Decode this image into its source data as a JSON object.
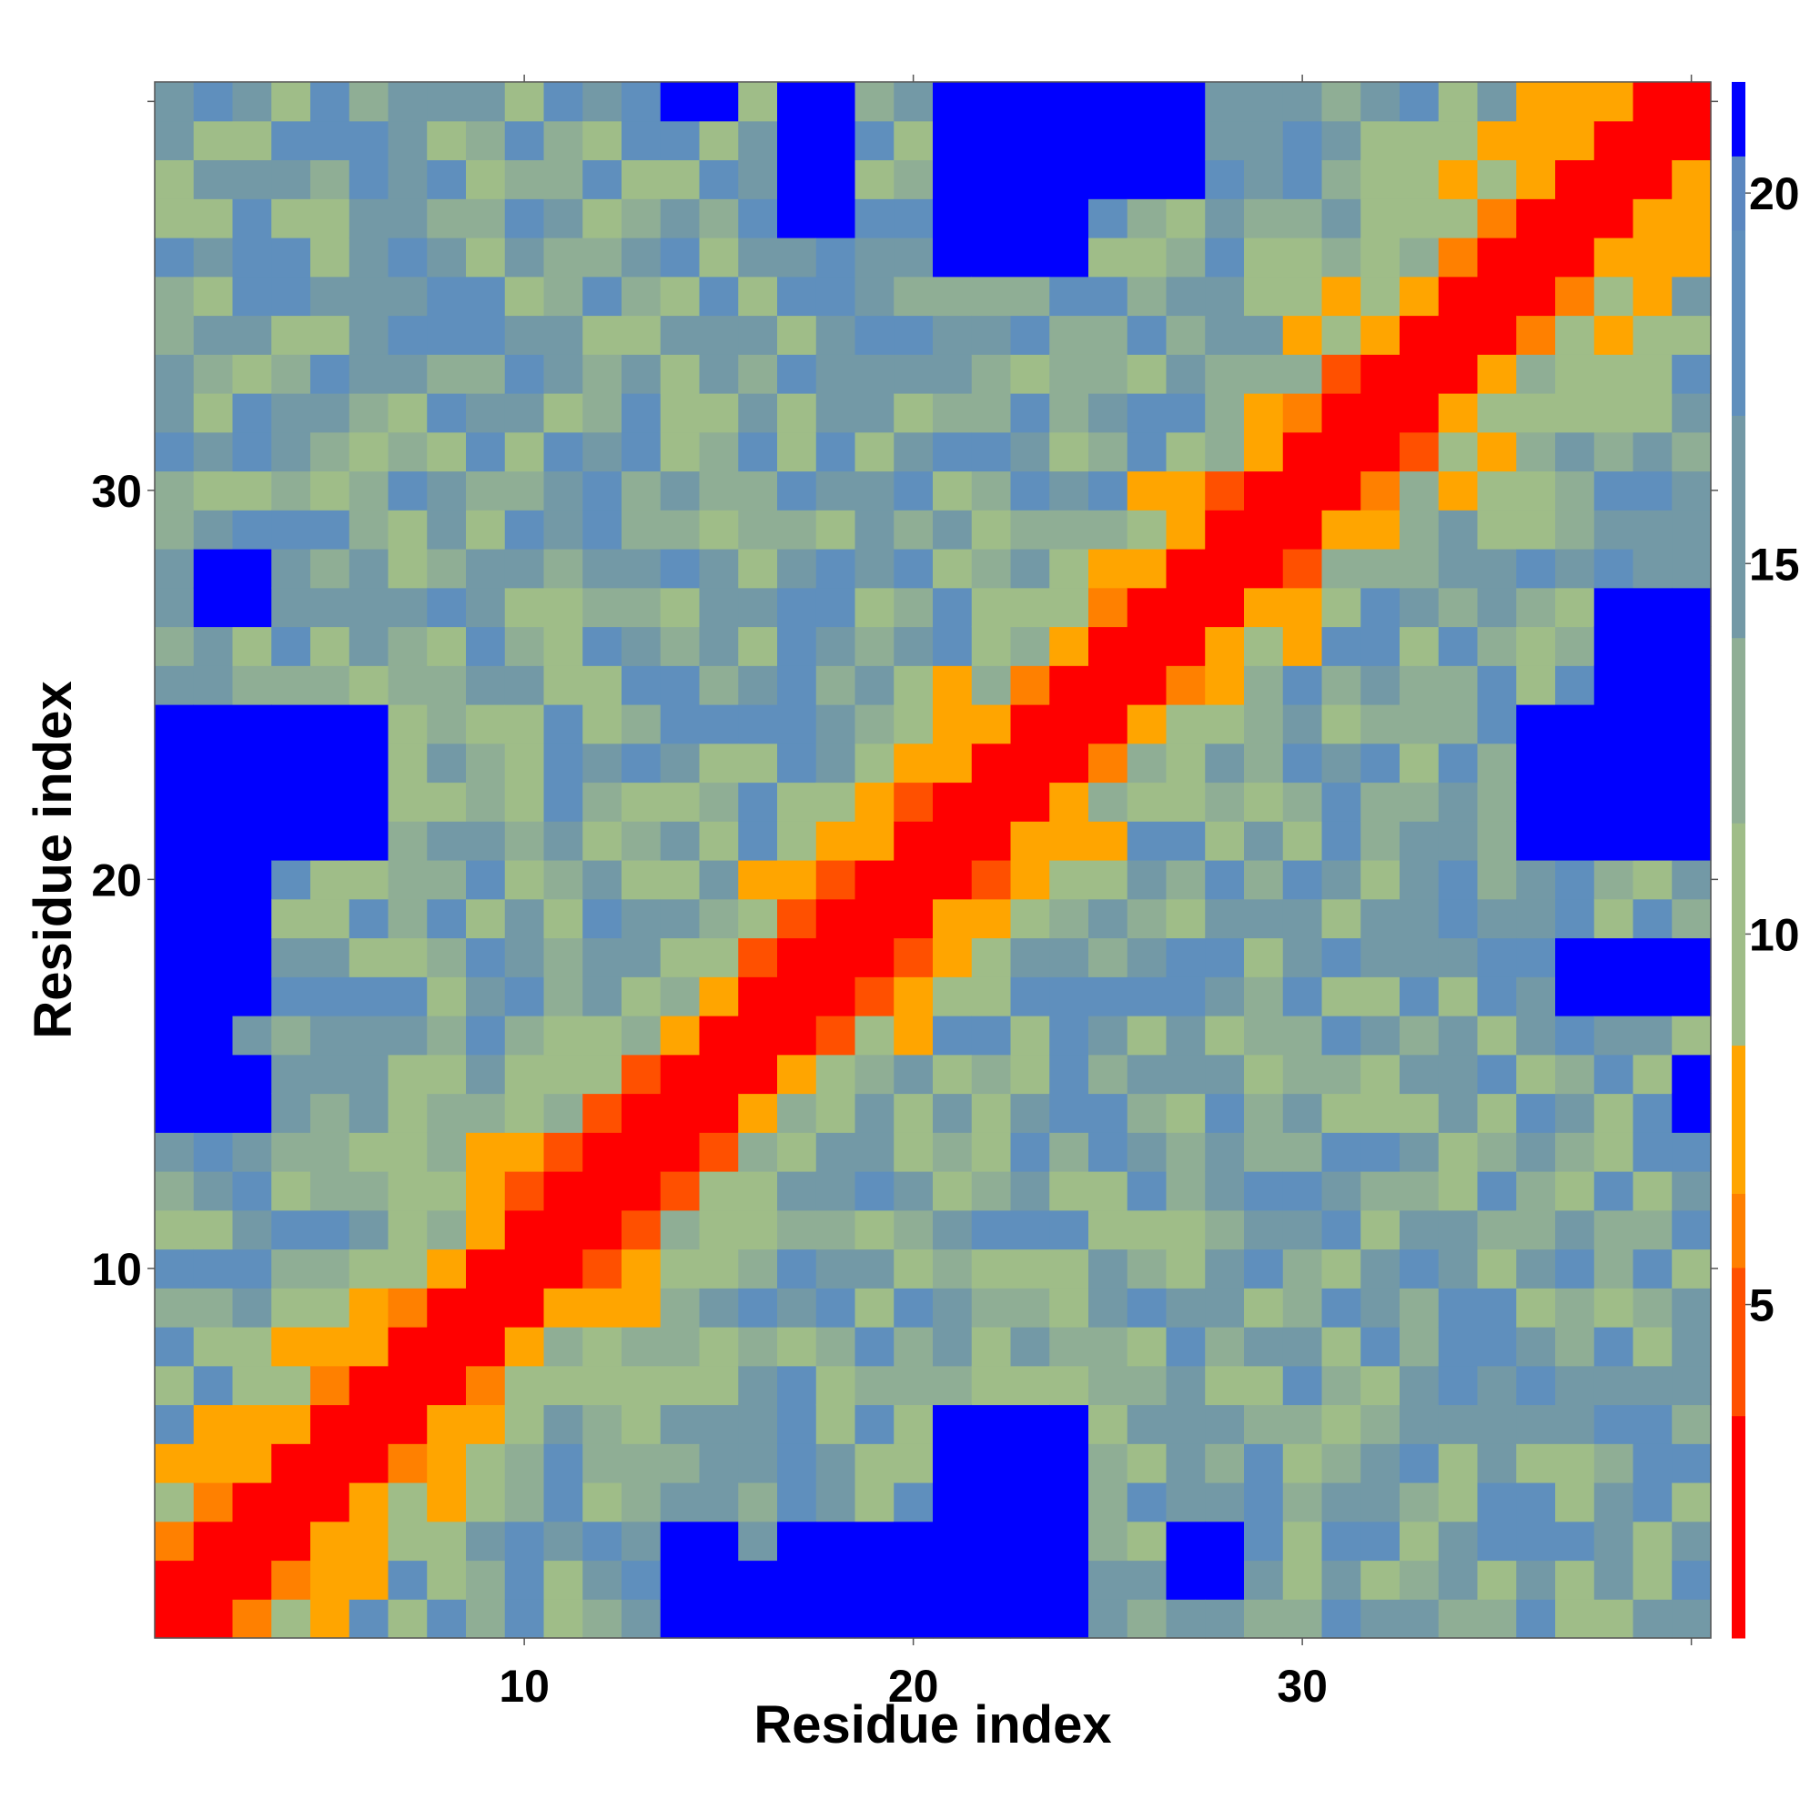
{
  "chart_data": {
    "type": "heatmap",
    "title": "",
    "xlabel": "Residue index",
    "ylabel": "Residue index",
    "n": 40,
    "xlim": [
      0.5,
      40.5
    ],
    "ylim": [
      0.5,
      40.5
    ],
    "x_ticks": [
      10,
      20,
      30
    ],
    "y_ticks": [
      10,
      20,
      30
    ],
    "colorbar": {
      "ticks": [
        5,
        10,
        15,
        20
      ],
      "range": [
        0.5,
        21.5
      ],
      "bands": [
        {
          "from": 0.5,
          "to": 3.5,
          "color": "#ff0000"
        },
        {
          "from": 3.5,
          "to": 5.5,
          "color": "#ff5000"
        },
        {
          "from": 5.5,
          "to": 6.5,
          "color": "#ff8000"
        },
        {
          "from": 6.5,
          "to": 8.5,
          "color": "#ffa500"
        },
        {
          "from": 8.5,
          "to": 11.5,
          "color": "#9fbd88"
        },
        {
          "from": 11.5,
          "to": 14.0,
          "color": "#8fae95"
        },
        {
          "from": 14.0,
          "to": 17.0,
          "color": "#7399a6"
        },
        {
          "from": 17.0,
          "to": 19.5,
          "color": "#5f8fbd"
        },
        {
          "from": 19.5,
          "to": 20.5,
          "color": "#5b87c0"
        },
        {
          "from": 20.5,
          "to": 21.5,
          "color": "#0000ff"
        }
      ]
    },
    "diagonal_min_distance": 0.0,
    "distance_model": {
      "note_of_values": "pairwise distance matrix; value(i,j) depends mainly on |i-j|, reaching the top colour band (>20.5) in blue blocks",
      "blue_blocks": [
        {
          "rows": [
            1,
            3
          ],
          "cols": [
            14,
            15
          ]
        },
        {
          "rows": [
            1,
            3
          ],
          "cols": [
            17,
            24
          ]
        },
        {
          "rows": [
            4,
            6
          ],
          "cols": [
            21,
            22
          ]
        },
        {
          "rows": [
            15,
            16
          ],
          "cols": [
            1,
            2
          ]
        },
        {
          "rows": [
            17,
            21
          ],
          "cols": [
            1,
            3
          ]
        },
        {
          "rows": [
            21,
            24
          ],
          "cols": [
            1,
            6
          ]
        },
        {
          "rows": [
            17,
            18
          ],
          "cols": [
            37,
            40
          ]
        },
        {
          "rows": [
            21,
            24
          ],
          "cols": [
            36,
            40
          ]
        },
        {
          "rows": [
            25,
            27
          ],
          "cols": [
            38,
            40
          ]
        },
        {
          "rows": [
            27,
            28
          ],
          "cols": [
            2,
            3
          ]
        },
        {
          "rows": [
            36,
            40
          ],
          "cols": [
            21,
            22
          ]
        },
        {
          "rows": [
            38,
            40
          ],
          "cols": [
            17,
            18
          ]
        },
        {
          "rows": [
            39,
            40
          ],
          "cols": [
            24,
            27
          ]
        },
        {
          "rows": [
            40,
            40
          ],
          "cols": [
            14,
            15
          ]
        }
      ]
    }
  }
}
